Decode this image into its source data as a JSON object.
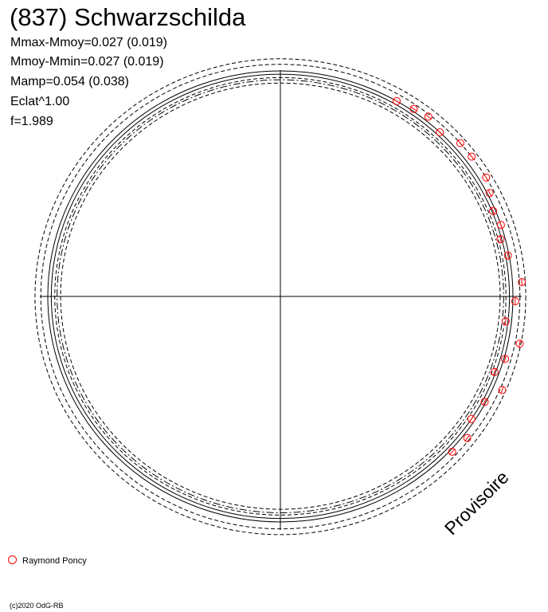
{
  "title": "(837) Schwarzschilda",
  "stats": [
    "Mmax-Mmoy=0.027 (0.019)",
    "Mmoy-Mmin=0.027 (0.019)",
    "Mamp=0.054 (0.038)",
    "Eclat^1.00",
    "f=1.989"
  ],
  "watermark": "Provisoire",
  "copyright": "(c)2020 OdG-RB",
  "chart_data": {
    "type": "scatter",
    "projection": "polar",
    "legend_position": "bottom-left",
    "colors": {
      "points": "#ff0000",
      "curves": "#000000"
    },
    "series": [
      {
        "name": "Raymond Poncy",
        "points": [
          {
            "angle": 30.0,
            "r": 1.0
          },
          {
            "angle": 34.6,
            "r": 1.01
          },
          {
            "angle": 38.6,
            "r": 1.02
          },
          {
            "angle": 43.3,
            "r": 1.0
          },
          {
            "angle": 48.7,
            "r": 1.03
          },
          {
            "angle": 53.0,
            "r": 1.03
          },
          {
            "angle": 59.2,
            "r": 1.03
          },
          {
            "angle": 63.0,
            "r": 1.01
          },
          {
            "angle": 67.5,
            "r": 0.99
          },
          {
            "angle": 71.5,
            "r": 1.0
          },
          {
            "angle": 75.0,
            "r": 0.98
          },
          {
            "angle": 79.5,
            "r": 0.995
          },
          {
            "angle": 86.5,
            "r": 1.04
          },
          {
            "angle": 91.2,
            "r": 1.01
          },
          {
            "angle": 96.5,
            "r": 0.975
          },
          {
            "angle": 101.5,
            "r": 1.05
          },
          {
            "angle": 106.0,
            "r": 1.005
          },
          {
            "angle": 110.0,
            "r": 0.98
          },
          {
            "angle": 113.5,
            "r": 1.04
          },
          {
            "angle": 118.0,
            "r": 0.995
          },
          {
            "angle": 123.5,
            "r": 0.985
          },
          {
            "angle": 128.0,
            "r": 1.02
          },
          {
            "angle": 133.0,
            "r": 1.01
          }
        ]
      }
    ],
    "curves": [
      {
        "role": "mean",
        "style": "solid",
        "r": 1.0
      },
      {
        "role": "mean-inner",
        "style": "solid",
        "r": 0.985
      },
      {
        "role": "max",
        "style": "dashed",
        "r": 1.03
      },
      {
        "role": "min",
        "style": "dashed",
        "r": 0.97
      },
      {
        "role": "extreme-max",
        "style": "dashed",
        "r": 1.055
      },
      {
        "role": "extreme-min",
        "style": "dashed",
        "r": 0.945
      },
      {
        "role": "dashdot-inner",
        "style": "dashdot",
        "r": 0.96
      }
    ],
    "grid": false,
    "axes": "crosshair"
  }
}
